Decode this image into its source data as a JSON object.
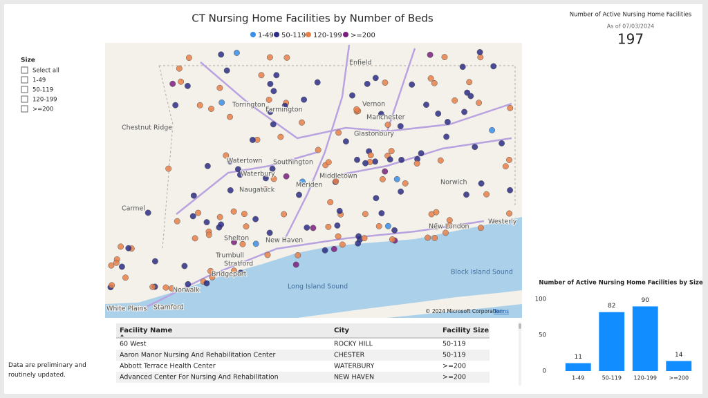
{
  "header": {
    "title": "CT Nursing Home Facilities by Number of Beds"
  },
  "legend": [
    {
      "name": "1-49",
      "color": "#3a8ee6"
    },
    {
      "name": "50-119",
      "color": "#2b2d86"
    },
    {
      "name": "120-199",
      "color": "#e8804a"
    },
    {
      "name": ">=200",
      "color": "#7a1f7e"
    }
  ],
  "slicer": {
    "title": "Size",
    "options": [
      "Select all",
      "1-49",
      "50-119",
      "120-199",
      ">=200"
    ]
  },
  "card": {
    "title": "Number of Active Nursing Home Facilities",
    "subtitle": "As of 07/03/2024",
    "value": 197
  },
  "map": {
    "labels": [
      "Enfield",
      "Vernon",
      "Manchester",
      "Glastonbury",
      "Farmington",
      "Torrington",
      "Watertown",
      "Waterbury",
      "Southington",
      "Middletown",
      "Meriden",
      "Naugatuck",
      "Chestnut Ridge",
      "Carmel",
      "Norwich",
      "New London",
      "Westerly",
      "Shelton",
      "New Haven",
      "Trumbull",
      "Stratford",
      "Bridgeport",
      "Norwalk",
      "Stamford",
      "White Plains",
      "Long Island Sound",
      "Block Island Sound"
    ],
    "copyright": "© 2024 Microsoft Corporation",
    "terms": "Terms"
  },
  "table": {
    "columns": [
      "Facility Name",
      "City",
      "Facility Size"
    ],
    "rows": [
      [
        "60 West",
        "ROCKY HILL",
        "50-119"
      ],
      [
        "Aaron Manor Nursing And Rehabilitation Center",
        "CHESTER",
        "50-119"
      ],
      [
        "Abbott Terrace Health Center",
        "WATERBURY",
        ">=200"
      ],
      [
        "Advanced Center For Nursing And Rehabilitation",
        "NEW HAVEN",
        ">=200"
      ]
    ]
  },
  "note": "Data are preliminary and routinely updated.",
  "chart_data": {
    "type": "bar",
    "title": "Number of Active Nursing Home Facilities by Size",
    "categories": [
      "1-49",
      "50-119",
      "120-199",
      ">=200"
    ],
    "values": [
      11,
      82,
      90,
      14
    ],
    "color": "#118dff",
    "ylim": [
      0,
      100
    ],
    "yticks": [
      0,
      50,
      100
    ]
  }
}
